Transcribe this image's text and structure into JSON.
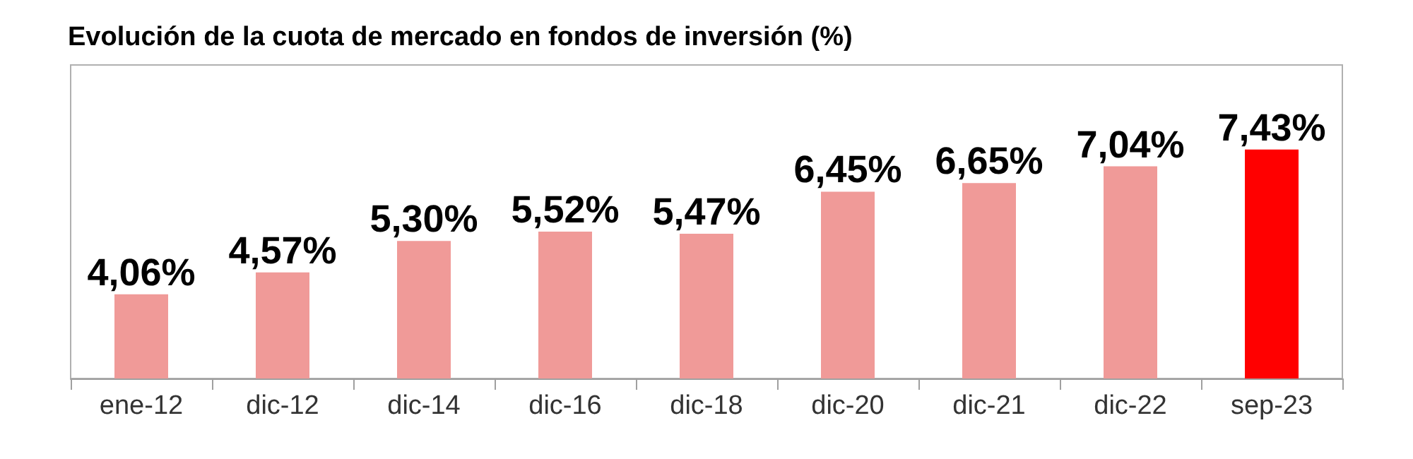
{
  "chart_data": {
    "type": "bar",
    "title": "Evolución de la cuota de mercado en fondos de inversión (%)",
    "categories": [
      "ene-12",
      "dic-12",
      "dic-14",
      "dic-16",
      "dic-18",
      "dic-20",
      "dic-21",
      "dic-22",
      "sep-23"
    ],
    "values": [
      4.06,
      4.57,
      5.3,
      5.52,
      5.47,
      6.45,
      6.65,
      7.04,
      7.43
    ],
    "colors": [
      "#f09a98",
      "#f09a98",
      "#f09a98",
      "#f09a98",
      "#f09a98",
      "#f09a98",
      "#f09a98",
      "#f09a98",
      "#ff0000"
    ],
    "value_labels": [
      "4,06%",
      "4,57%",
      "5,30%",
      "5,52%",
      "5,47%",
      "6,45%",
      "6,65%",
      "7,04%",
      "7,43%"
    ],
    "ylim": [
      2.1,
      9.4
    ]
  }
}
